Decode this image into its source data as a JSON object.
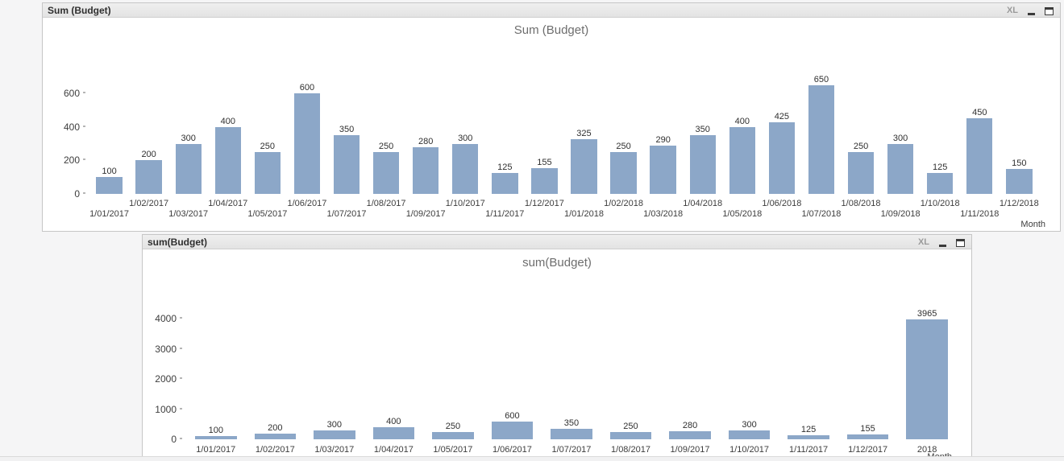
{
  "windows": [
    {
      "caption": "Sum (Budget)",
      "size_label": "XL"
    },
    {
      "caption": "sum(Budget)",
      "size_label": "XL"
    }
  ],
  "chart_data": [
    {
      "type": "bar",
      "title": "Sum (Budget)",
      "categories": [
        "1/01/2017",
        "1/02/2017",
        "1/03/2017",
        "1/04/2017",
        "1/05/2017",
        "1/06/2017",
        "1/07/2017",
        "1/08/2017",
        "1/09/2017",
        "1/10/2017",
        "1/11/2017",
        "1/12/2017",
        "1/01/2018",
        "1/02/2018",
        "1/03/2018",
        "1/04/2018",
        "1/05/2018",
        "1/06/2018",
        "1/07/2018",
        "1/08/2018",
        "1/09/2018",
        "1/10/2018",
        "1/11/2018",
        "1/12/2018"
      ],
      "values": [
        100,
        200,
        300,
        400,
        250,
        600,
        350,
        250,
        280,
        300,
        125,
        155,
        325,
        250,
        290,
        350,
        400,
        425,
        650,
        250,
        300,
        125,
        450,
        150
      ],
      "xlabel": "Month",
      "ylabel": "",
      "yticks": [
        0,
        200,
        400,
        600
      ],
      "ylim": [
        0,
        720
      ],
      "bar_color": "#8ca7c8",
      "grid": false,
      "legend": false,
      "stagger_x_labels": true,
      "value_labels": true
    },
    {
      "type": "bar",
      "title": "sum(Budget)",
      "categories": [
        "1/01/2017",
        "1/02/2017",
        "1/03/2017",
        "1/04/2017",
        "1/05/2017",
        "1/06/2017",
        "1/07/2017",
        "1/08/2017",
        "1/09/2017",
        "1/10/2017",
        "1/11/2017",
        "1/12/2017",
        "2018"
      ],
      "values": [
        100,
        200,
        300,
        400,
        250,
        600,
        350,
        250,
        280,
        300,
        125,
        155,
        3965
      ],
      "xlabel": "Month",
      "ylabel": "",
      "yticks": [
        0,
        1000,
        2000,
        3000,
        4000
      ],
      "ylim": [
        0,
        4400
      ],
      "bar_color": "#8ca7c8",
      "grid": false,
      "legend": false,
      "stagger_x_labels": false,
      "value_labels": true
    }
  ]
}
